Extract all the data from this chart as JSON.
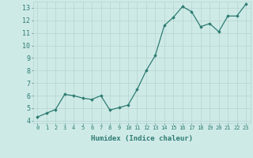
{
  "x": [
    0,
    1,
    2,
    3,
    4,
    5,
    6,
    7,
    8,
    9,
    10,
    11,
    12,
    13,
    14,
    15,
    16,
    17,
    18,
    19,
    20,
    21,
    22,
    23
  ],
  "y": [
    4.3,
    4.6,
    4.9,
    6.1,
    6.0,
    5.8,
    5.7,
    6.0,
    4.85,
    5.05,
    5.25,
    6.5,
    8.0,
    9.2,
    11.6,
    12.25,
    13.1,
    12.7,
    11.5,
    11.75,
    11.1,
    12.35,
    12.35,
    13.3
  ],
  "xlim": [
    -0.5,
    23.5
  ],
  "ylim": [
    3.8,
    13.5
  ],
  "yticks": [
    4,
    5,
    6,
    7,
    8,
    9,
    10,
    11,
    12,
    13
  ],
  "xticks": [
    0,
    1,
    2,
    3,
    4,
    5,
    6,
    7,
    8,
    9,
    10,
    11,
    12,
    13,
    14,
    15,
    16,
    17,
    18,
    19,
    20,
    21,
    22,
    23
  ],
  "xlabel": "Humidex (Indice chaleur)",
  "line_color": "#2d7c72",
  "marker": "D",
  "marker_size": 1.8,
  "bg_color": "#ceeae7",
  "grid_color": "#b8d4d0",
  "label_color": "#2d7c72",
  "tick_color": "#2d7c72",
  "tick_fontsize": 5.0,
  "ytick_fontsize": 6.0,
  "xlabel_fontsize": 6.5
}
